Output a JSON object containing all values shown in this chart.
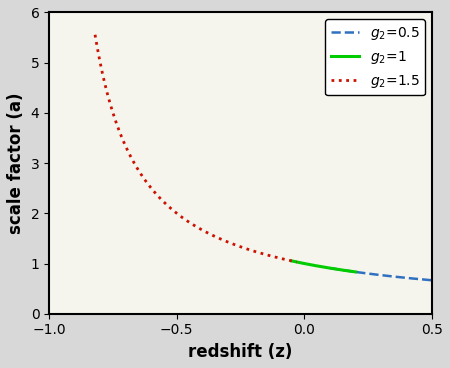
{
  "title": "",
  "xlabel": "redshift (z)",
  "ylabel": "scale factor (a)",
  "xlim": [
    -1.0,
    0.5
  ],
  "ylim": [
    0,
    6
  ],
  "xticks": [
    -1.0,
    -0.5,
    0.0,
    0.5
  ],
  "yticks": [
    0,
    1,
    2,
    3,
    4,
    5,
    6
  ],
  "bg_color": "#f0f0e8",
  "lines": [
    {
      "label": "$g_2=0.5$",
      "color": "#3070c0",
      "linestyle": "dashed",
      "linewidth": 1.8,
      "z_start": 0.1,
      "z_end": 0.5,
      "g2": 0.5
    },
    {
      "label": "$g_2=1$",
      "color": "#00cc00",
      "linestyle": "solid",
      "linewidth": 2.2,
      "z_start": -0.05,
      "z_end": 0.2,
      "g2": 1.0
    },
    {
      "label": "$g_2=1.5$",
      "color": "#cc1100",
      "linestyle": "dotted",
      "linewidth": 2.0,
      "z_start": -0.82,
      "z_end": -0.03,
      "g2": 1.5
    }
  ],
  "legend_loc": "upper right",
  "legend_fontsize": 10,
  "axis_fontsize": 12,
  "tick_fontsize": 10
}
